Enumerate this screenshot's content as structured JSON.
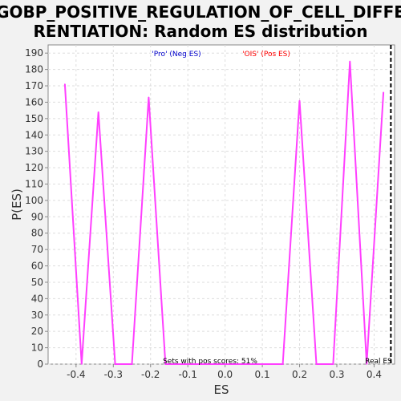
{
  "chart_data": {
    "type": "line",
    "title_line1": "GOBP_POSITIVE_REGULATION_OF_CELL_DIFFE",
    "title_line2": "RENTIATION: Random ES distribution",
    "xlabel": "ES",
    "ylabel": "P(ES)",
    "xlim": [
      -0.475,
      0.455
    ],
    "ylim": [
      0,
      195
    ],
    "x_ticks": [
      -0.4,
      -0.3,
      -0.2,
      -0.1,
      0.0,
      0.1,
      0.2,
      0.3,
      0.4
    ],
    "x_tick_labels": [
      "-0.4",
      "-0.3",
      "-0.2",
      "-0.1",
      "0.0",
      "0.1",
      "0.2",
      "0.3",
      "0.4"
    ],
    "y_ticks": [
      0,
      10,
      20,
      30,
      40,
      50,
      60,
      70,
      80,
      90,
      100,
      110,
      120,
      130,
      140,
      150,
      160,
      170,
      180,
      190
    ],
    "grid": true,
    "series": [
      {
        "color": "#ff40ff",
        "x": [
          -0.43,
          -0.385,
          -0.34,
          -0.295,
          -0.25,
          -0.205,
          -0.16,
          -0.115,
          -0.07,
          -0.025,
          0.02,
          0.065,
          0.11,
          0.155,
          0.2,
          0.245,
          0.29,
          0.335,
          0.38,
          0.425
        ],
        "y": [
          171,
          0,
          154,
          0,
          0,
          163,
          0,
          0,
          0,
          0,
          0,
          0,
          0,
          0,
          161,
          0,
          0,
          185,
          0,
          166
        ]
      }
    ],
    "real_es": 0.445,
    "real_es_label": "Real ES",
    "legend_neg": "'Pro' (Neg ES)",
    "legend_pos": "'OIS' (Pos ES)",
    "legend_neg_color": "#0000cc",
    "legend_pos_color": "#ff0000",
    "annotation": "Sets with pos scores: 51%"
  }
}
